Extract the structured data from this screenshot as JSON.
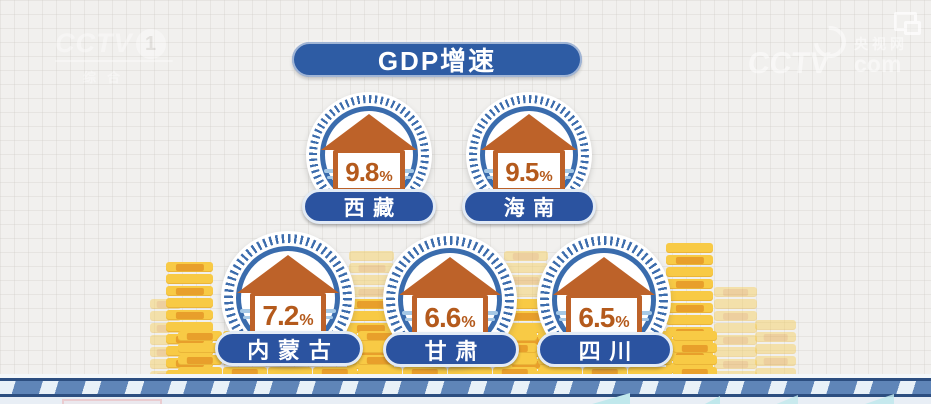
{
  "channel_logo": {
    "name": "CCTV",
    "channel_number": "1",
    "subtitle": "综合"
  },
  "site_logo": {
    "brand": "CCTV",
    "site_name": "央视网",
    "domain": "com"
  },
  "header": {
    "title": "GDP增速"
  },
  "badges": [
    {
      "province": "西藏",
      "value": "9.8",
      "unit": "%"
    },
    {
      "province": "海南",
      "value": "9.5",
      "unit": "%"
    },
    {
      "province": "内蒙古",
      "value": "7.2",
      "unit": "%"
    },
    {
      "province": "甘肃",
      "value": "6.6",
      "unit": "%"
    },
    {
      "province": "四川",
      "value": "6.5",
      "unit": "%"
    }
  ],
  "chart_data": {
    "type": "table",
    "title": "GDP增速",
    "categories": [
      "西藏",
      "海南",
      "内蒙古",
      "甘肃",
      "四川"
    ],
    "values": [
      9.8,
      9.5,
      7.2,
      6.6,
      6.5
    ],
    "unit": "%",
    "layout": "pictorial infographic: two rows of circular house badges (2 top, 3 bottom) above gold coin stacks; legend/axes absent"
  },
  "colors": {
    "badge_ring_blue": "#3a6cad",
    "label_pill_blue": "#2b53a0",
    "banner_blue": "#2e5ca4",
    "house_orange": "#bd6229",
    "value_orange": "#b45a1c",
    "coin_gold": "#f8ca45",
    "coin_orange": "#e89f2b",
    "band_blue": "#5f85b8",
    "background": "#f1f0ee"
  }
}
